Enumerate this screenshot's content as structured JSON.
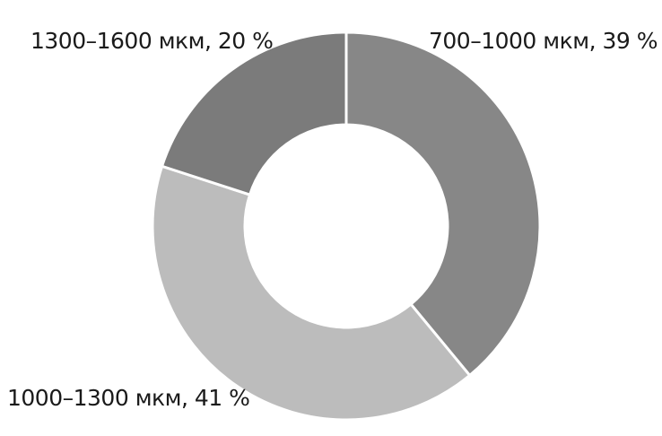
{
  "chart_data": {
    "type": "pie",
    "donut": true,
    "labels": [
      "700–1000 мкм, 39 %",
      "1000–1300 мкм, 41 %",
      "1300–1600 мкм, 20 %"
    ],
    "categories": [
      "700–1000 мкм",
      "1000–1300 мкм",
      "1300–1600 мкм"
    ],
    "values": [
      39,
      41,
      20
    ],
    "colors": [
      "#878787",
      "#bcbcbc",
      "#7b7b7b"
    ],
    "legend": "none"
  }
}
